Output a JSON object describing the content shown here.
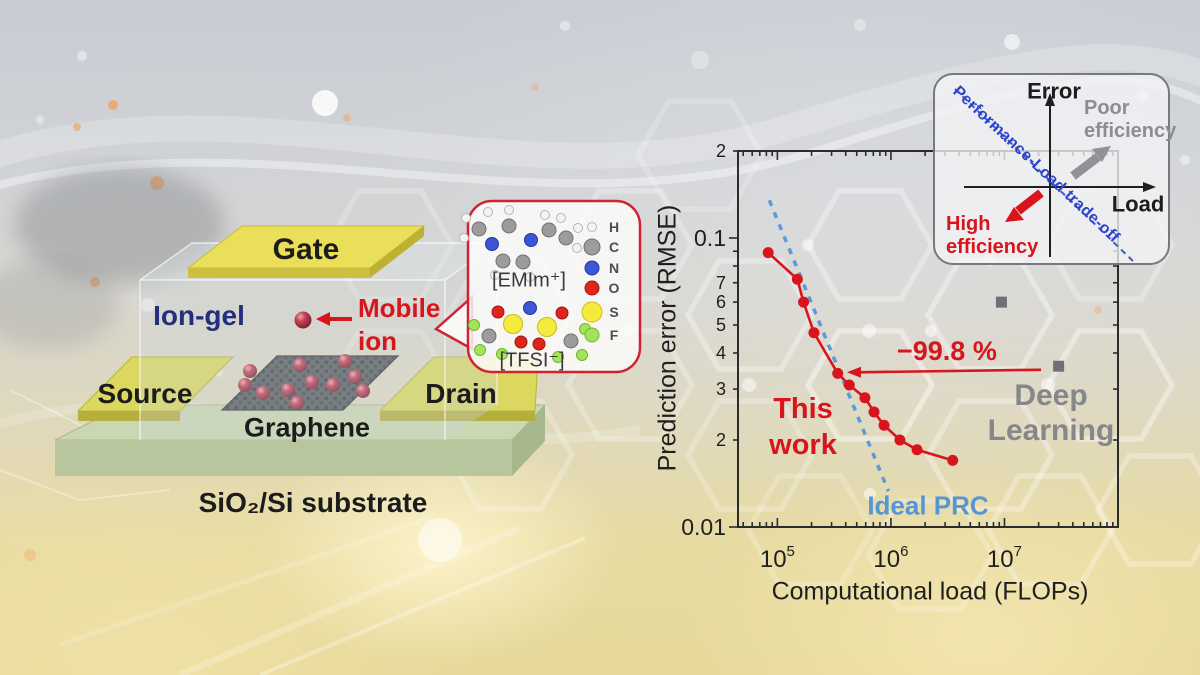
{
  "figure": {
    "device": {
      "gate": "Gate",
      "ion_gel": "Ion-gel",
      "mobile_ion_line1": "Mobile",
      "mobile_ion_line2": "ion",
      "source": "Source",
      "drain": "Drain",
      "graphene": "Graphene",
      "substrate": "SiO₂/Si substrate"
    },
    "molecules": {
      "cation": "[EMIm⁺]",
      "anion": "[TFSI⁻]",
      "legend": [
        {
          "symbol": "H",
          "color": "#f3f3f1"
        },
        {
          "symbol": "C",
          "color": "#9c9c9c"
        },
        {
          "symbol": "N",
          "color": "#3d56d6"
        },
        {
          "symbol": "O",
          "color": "#e0251c"
        },
        {
          "symbol": "S",
          "color": "#f4eb3c"
        },
        {
          "symbol": "F",
          "color": "#a4e45c"
        }
      ]
    },
    "inset": {
      "error_axis": "Error",
      "load_axis": "Load",
      "poor_line1": "Poor",
      "poor_line2": "efficiency",
      "high_line1": "High",
      "high_line2": "efficiency",
      "tradeoff": "Performance-Load trade-off"
    },
    "annotations": {
      "reduction": "−99.8 %",
      "this_work_line1": "This",
      "this_work_line2": "work",
      "deep_learning_line1": "Deep",
      "deep_learning_line2": "Learning",
      "ideal_prc": "Ideal PRC"
    }
  },
  "chart_data": {
    "type": "scatter",
    "xlabel": "Computational load (FLOPs)",
    "ylabel": "Prediction error (RMSE)",
    "x_scale": "log",
    "y_scale": "log",
    "xlim": [
      45000,
      100000000
    ],
    "ylim": [
      0.01,
      0.2
    ],
    "x_major_ticks": [
      100000,
      1000000,
      10000000
    ],
    "y_tick_labels": [
      {
        "value": 0.2,
        "label": "2"
      },
      {
        "value": 0.1,
        "label": "0.1"
      },
      {
        "value": 0.07,
        "label": "7"
      },
      {
        "value": 0.06,
        "label": "6"
      },
      {
        "value": 0.05,
        "label": "5"
      },
      {
        "value": 0.04,
        "label": "4"
      },
      {
        "value": 0.03,
        "label": "3"
      },
      {
        "value": 0.02,
        "label": "2"
      },
      {
        "value": 0.01,
        "label": "0.01"
      }
    ],
    "series": [
      {
        "name": "This work",
        "color": "#d8141d",
        "marker": "circle",
        "line": true,
        "points": [
          [
            83000,
            0.089
          ],
          [
            150000,
            0.072
          ],
          [
            170000,
            0.06
          ],
          [
            210000,
            0.047
          ],
          [
            340000,
            0.034
          ],
          [
            430000,
            0.031
          ],
          [
            590000,
            0.028
          ],
          [
            710000,
            0.025
          ],
          [
            870000,
            0.0225
          ],
          [
            1200000,
            0.02
          ],
          [
            1700000,
            0.0185
          ],
          [
            3500000,
            0.017
          ]
        ]
      },
      {
        "name": "Deep Learning",
        "color": "#6e7073",
        "marker": "square",
        "line": false,
        "points": [
          [
            9400000,
            0.06
          ],
          [
            30000000,
            0.036
          ]
        ]
      }
    ],
    "reference_line": {
      "label": "Ideal PRC",
      "color": "#5b9bd8",
      "dashed": true,
      "points": [
        [
          85000,
          0.135
        ],
        [
          950000,
          0.0133
        ]
      ]
    },
    "arrow_annotation": {
      "label": "−99.8 %",
      "from": [
        21000000,
        0.035
      ],
      "to": [
        410000,
        0.0343
      ]
    }
  }
}
